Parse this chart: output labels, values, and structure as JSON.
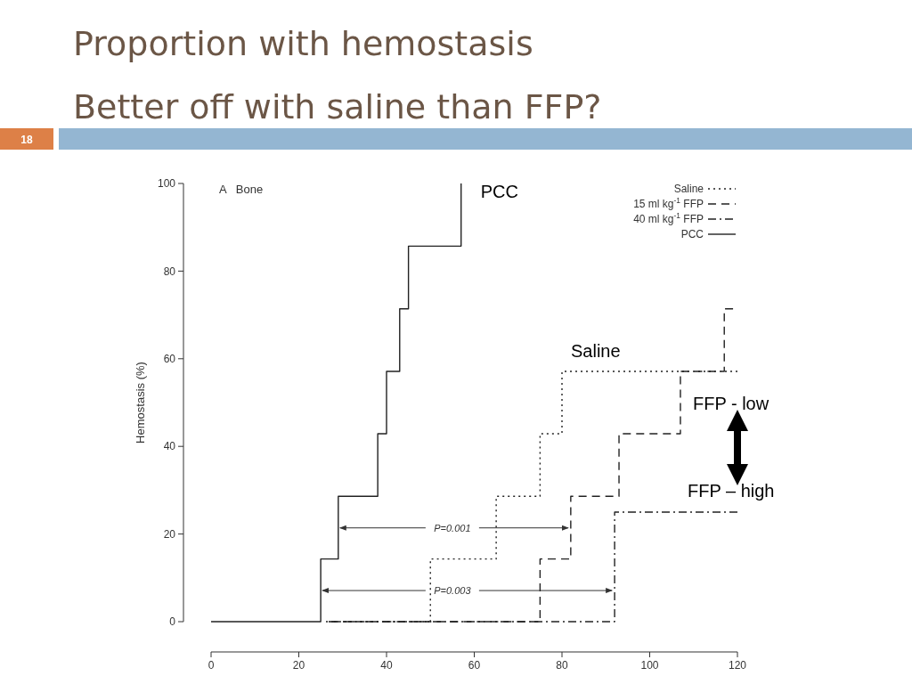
{
  "chart_data": {
    "type": "step",
    "title": "Proportion with hemostasis",
    "subtitle": "Better off with saline than FFP?",
    "ylabel": "Hemostasis (%)",
    "xlim": [
      0,
      120
    ],
    "ylim": [
      0,
      100
    ],
    "xticks": [
      0,
      20,
      40,
      60,
      80,
      100,
      120
    ],
    "yticks": [
      0,
      20,
      40,
      60,
      80,
      100
    ],
    "grid": false,
    "legend": "top right",
    "series": [
      {
        "name": "Saline",
        "color": "#222222",
        "line_style": "dotted",
        "x": [
          26,
          50,
          65,
          75,
          80,
          120
        ],
        "values": [
          0,
          14.3,
          28.6,
          42.9,
          57.1,
          57.1
        ]
      },
      {
        "name": "15 ml kg$^{-1}$ FFP",
        "color": "#222222",
        "line_style": "dashed",
        "x": [
          26,
          75,
          82,
          93,
          107,
          117,
          119
        ],
        "values": [
          0,
          14.3,
          28.6,
          42.9,
          57.1,
          71.4,
          71.4
        ]
      },
      {
        "name": "40 ml kg$^{-1}$ FFP",
        "color": "#222222",
        "line_style": "dashdot",
        "x": [
          26,
          92,
          120
        ],
        "values": [
          0,
          25,
          25
        ]
      },
      {
        "name": "PCC",
        "color": "#222222",
        "line_style": "solid",
        "x": [
          0,
          25,
          29,
          38,
          40,
          43,
          45,
          57
        ],
        "values": [
          0,
          14.3,
          28.6,
          42.9,
          57.1,
          71.4,
          85.7,
          100
        ]
      }
    ],
    "annotations": [
      "18",
      "A   Bone",
      {
        "text": "PCC",
        "x": 57,
        "y": 100
      },
      {
        "text": "Saline",
        "x": 80,
        "y": 57.1
      },
      {
        "text": "FFP - low",
        "x": 107,
        "y": 57.1
      },
      {
        "text": "FFP – high",
        "x": 110,
        "y": 25
      },
      {
        "text": "P=0.001",
        "x": 82,
        "y": 21.4
      },
      {
        "text": "P=0.003",
        "x": 92,
        "y": 7.1
      }
    ]
  }
}
